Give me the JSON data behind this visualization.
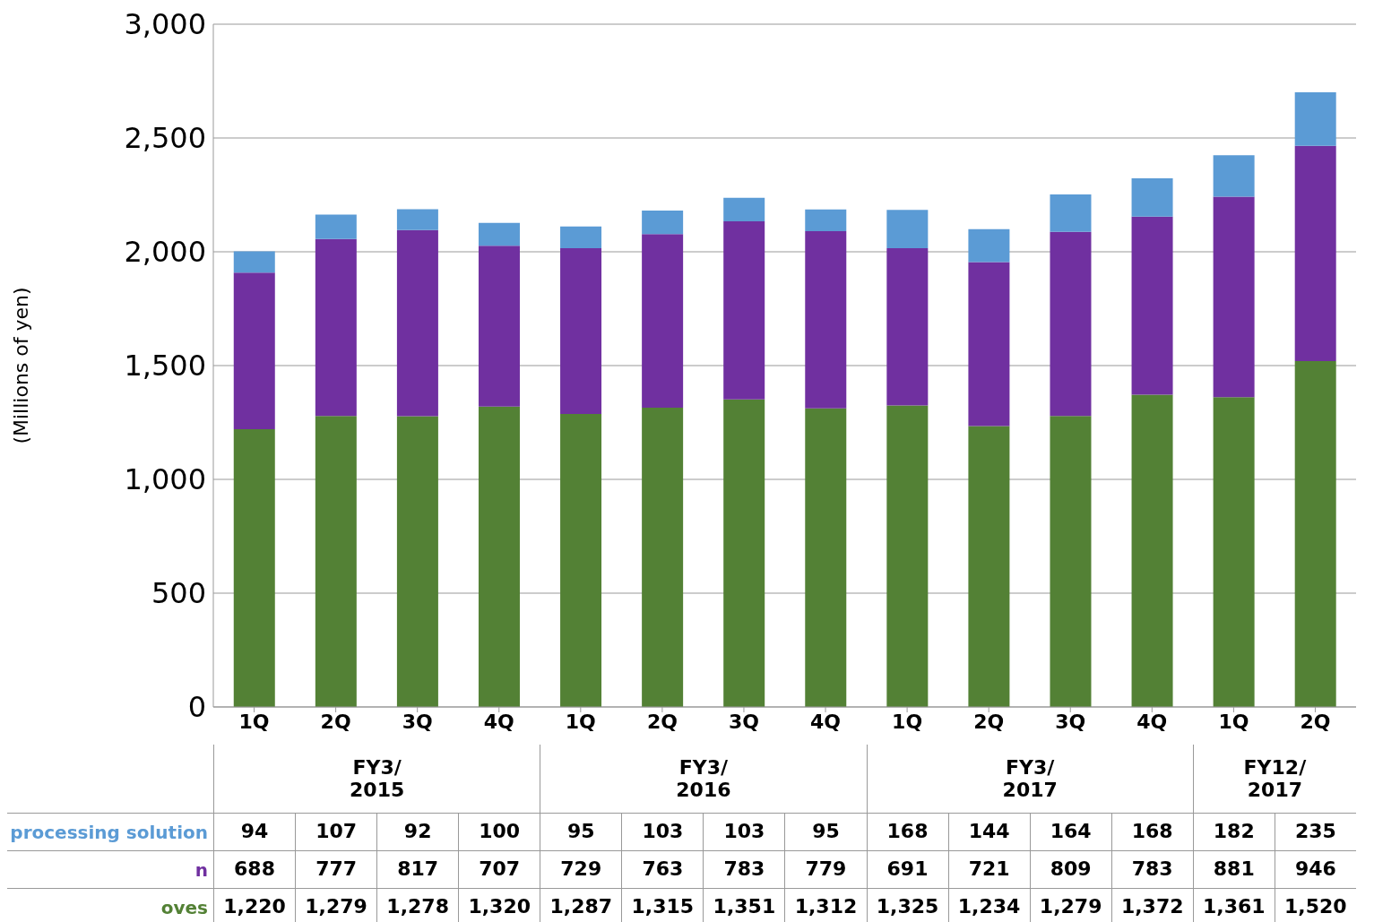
{
  "chart_data": {
    "type": "bar",
    "stacked": true,
    "ylabel": "(Millions of yen)",
    "categories": [
      "1Q",
      "2Q",
      "3Q",
      "4Q",
      "1Q",
      "2Q",
      "3Q",
      "4Q",
      "1Q",
      "2Q",
      "3Q",
      "4Q",
      "1Q",
      "2Q"
    ],
    "annotations": [
      "FY3/2015",
      "FY3/2016",
      "FY3/2017",
      "FY12/2017"
    ],
    "series": [
      {
        "name": "oves",
        "color": "#538135",
        "values": [
          1220,
          1279,
          1278,
          1320,
          1287,
          1315,
          1351,
          1312,
          1325,
          1234,
          1279,
          1372,
          1361,
          1520
        ],
        "value_labels": [
          "1,220",
          "1,279",
          "1,278",
          "1,320",
          "1,287",
          "1,315",
          "1,351",
          "1,312",
          "1,325",
          "1,234",
          "1,279",
          "1,372",
          "1,361",
          "1,520"
        ]
      },
      {
        "name": "n",
        "color": "#7030a0",
        "values": [
          688,
          777,
          817,
          707,
          729,
          763,
          783,
          779,
          691,
          721,
          809,
          783,
          881,
          946
        ],
        "value_labels": [
          "688",
          "777",
          "817",
          "707",
          "729",
          "763",
          "783",
          "779",
          "691",
          "721",
          "809",
          "783",
          "881",
          "946"
        ]
      },
      {
        "name": "processing solution",
        "color": "#5b9bd5",
        "values": [
          94,
          107,
          92,
          100,
          95,
          103,
          103,
          95,
          168,
          144,
          164,
          168,
          182,
          235
        ],
        "value_labels": [
          "94",
          "107",
          "92",
          "100",
          "95",
          "103",
          "103",
          "95",
          "168",
          "144",
          "164",
          "168",
          "182",
          "235"
        ]
      }
    ],
    "ylim": [
      0,
      3000
    ],
    "yticks": [
      {
        "value": 0,
        "label": "0"
      },
      {
        "value": 500,
        "label": "500"
      },
      {
        "value": 1000,
        "label": "1,000"
      },
      {
        "value": 1500,
        "label": "1,500"
      },
      {
        "value": 2000,
        "label": "2,000"
      },
      {
        "value": 2500,
        "label": "2,500"
      },
      {
        "value": 3000,
        "label": "3,000"
      }
    ],
    "grid": "y",
    "legend": false
  }
}
